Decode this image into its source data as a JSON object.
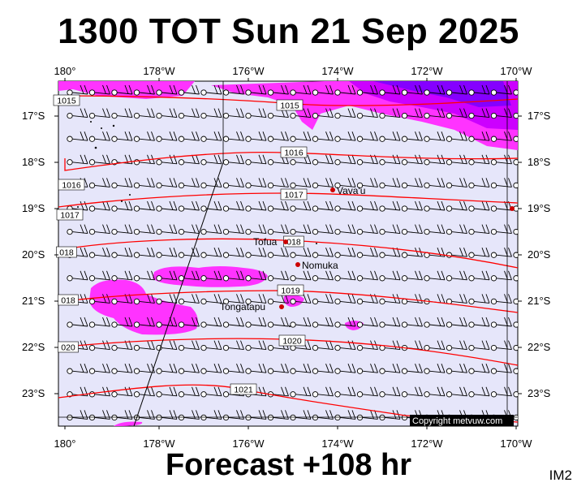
{
  "title": "1300 TOT Sun 21 Sep 2025",
  "subtitle": "Forecast +108 hr",
  "image_code": "IM2",
  "copyright": "Copyright metvuw.com",
  "colors": {
    "background": "#e6e6fa",
    "rain_light": "#ff33ff",
    "rain_medium": "#cc00ff",
    "rain_heavy": "#6600ff",
    "isobar": "#ff0000",
    "barb": "#000000"
  },
  "longitude_labels": [
    "180°",
    "178°W",
    "176°W",
    "174°W",
    "172°W",
    "170°W"
  ],
  "latitude_labels": [
    "17°S",
    "18°S",
    "19°S",
    "20°S",
    "21°S",
    "22°S",
    "23°S"
  ],
  "isobar_labels": [
    "1015",
    "1015",
    "1016",
    "1016",
    "1017",
    "1017",
    "018",
    "018",
    "018",
    "1019",
    "020",
    "1020",
    "1021"
  ],
  "places": [
    {
      "name": "Vava'u"
    },
    {
      "name": "Tofua"
    },
    {
      "name": "Nomuka"
    },
    {
      "name": "Tongatapu"
    }
  ],
  "wind_field": {
    "direction": "easterly",
    "grid": "regular"
  }
}
